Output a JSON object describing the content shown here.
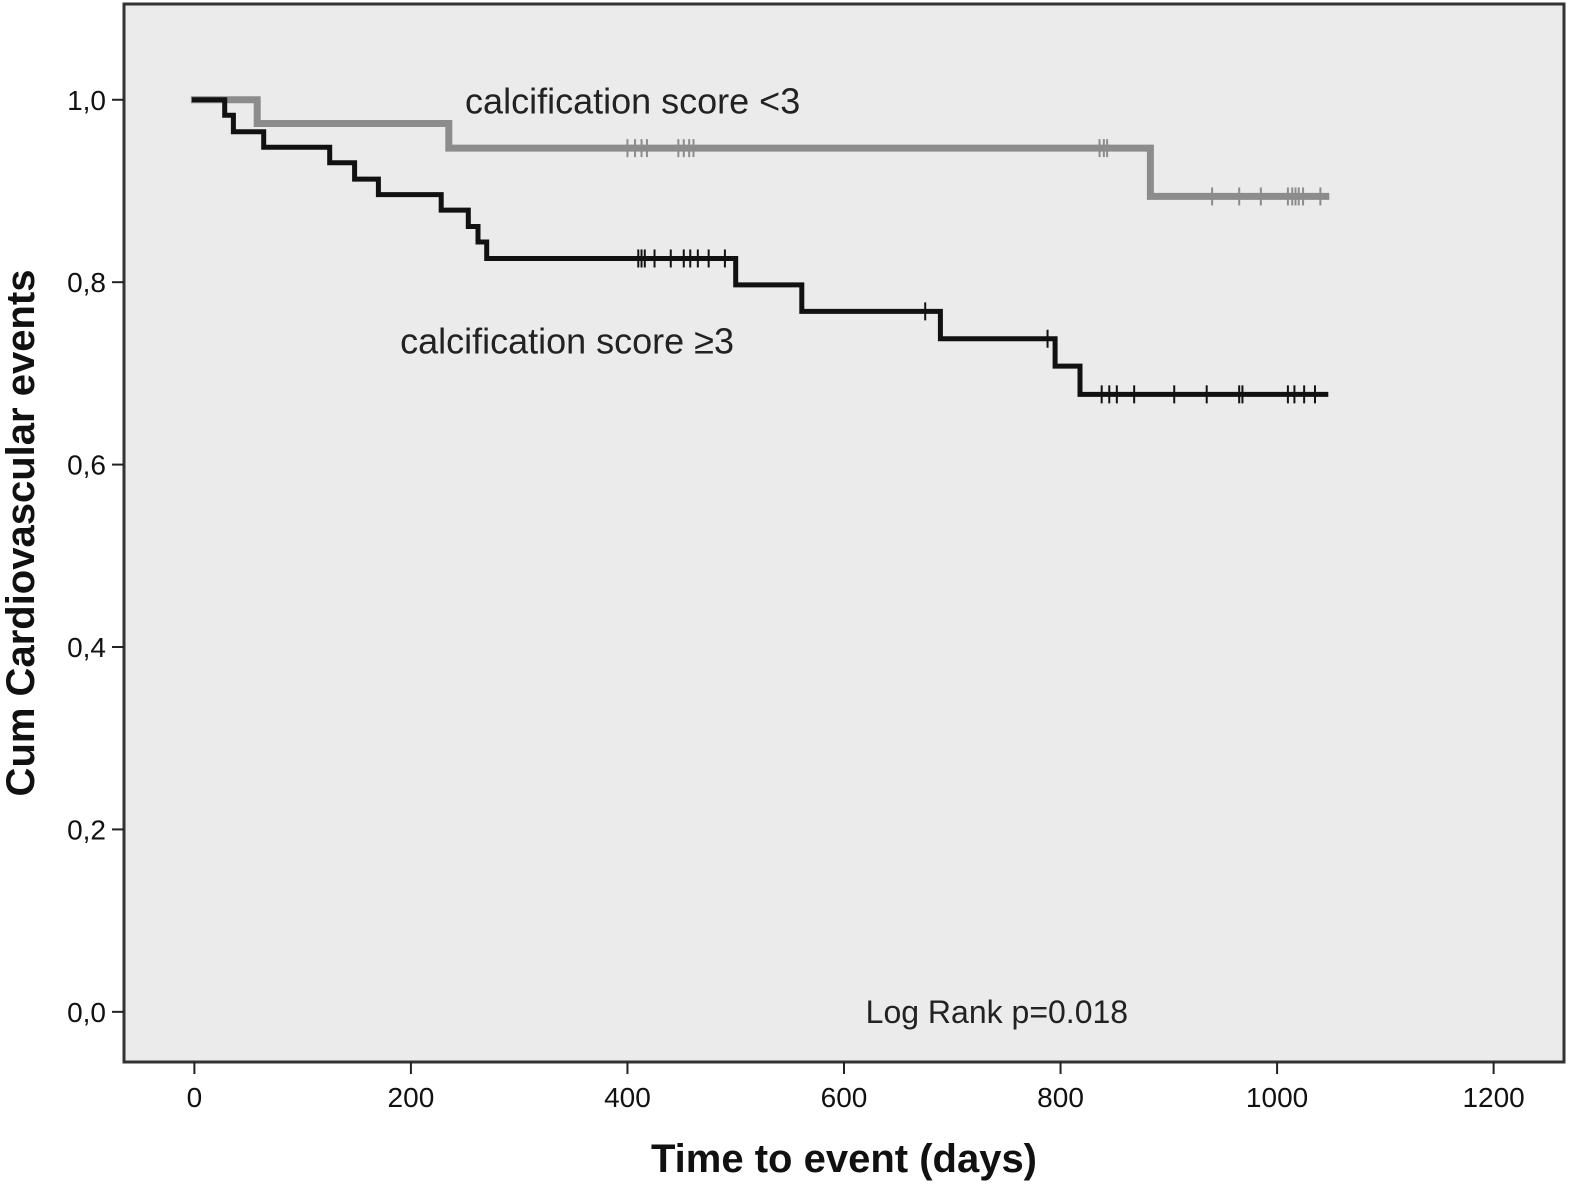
{
  "chart_data": {
    "type": "line",
    "subtype": "kaplan-meier step",
    "xlabel": "Time to event (days)",
    "ylabel": "Cum Cardiovascular events",
    "xlim": [
      -65,
      1265
    ],
    "ylim": [
      -0.055,
      1.105
    ],
    "x_ticks": [
      0,
      200,
      400,
      600,
      800,
      1000,
      1200
    ],
    "x_tick_labels": [
      "0",
      "200",
      "400",
      "600",
      "800",
      "1000",
      "1200"
    ],
    "y_ticks": [
      0.0,
      0.2,
      0.4,
      0.6,
      0.8,
      1.0
    ],
    "y_tick_labels": [
      "0,0",
      "0,2",
      "0,4",
      "0,6",
      "0,8",
      "1,0"
    ],
    "grid": false,
    "legend": "none",
    "plot_background": "#ebebeb",
    "annotations": [
      {
        "text": "calcification score <3",
        "x": 250,
        "y": 0.985
      },
      {
        "text": "calcification score ≥3",
        "x": 190,
        "y": 0.722
      },
      {
        "text": "Log Rank p=0.018",
        "x": 620,
        "y": -0.012
      }
    ],
    "series": [
      {
        "color": "#8c8c8c",
        "points": [
          [
            0,
            1.0
          ],
          [
            58,
            1.0
          ],
          [
            58,
            0.974
          ],
          [
            235,
            0.974
          ],
          [
            235,
            0.947
          ],
          [
            883,
            0.947
          ],
          [
            883,
            0.894
          ],
          [
            1045,
            0.894
          ]
        ],
        "censored": [
          [
            400,
            0.947
          ],
          [
            407,
            0.947
          ],
          [
            413,
            0.947
          ],
          [
            418,
            0.947
          ],
          [
            447,
            0.947
          ],
          [
            452,
            0.947
          ],
          [
            457,
            0.947
          ],
          [
            461,
            0.947
          ],
          [
            836,
            0.947
          ],
          [
            840,
            0.947
          ],
          [
            843,
            0.947
          ],
          [
            940,
            0.894
          ],
          [
            965,
            0.894
          ],
          [
            985,
            0.894
          ],
          [
            1010,
            0.894
          ],
          [
            1014,
            0.894
          ],
          [
            1017,
            0.894
          ],
          [
            1020,
            0.894
          ],
          [
            1024,
            0.894
          ],
          [
            1040,
            0.894
          ]
        ]
      },
      {
        "color": "#111111",
        "points": [
          [
            0,
            1.0
          ],
          [
            28,
            1.0
          ],
          [
            28,
            0.983
          ],
          [
            36,
            0.983
          ],
          [
            36,
            0.965
          ],
          [
            64,
            0.965
          ],
          [
            64,
            0.948
          ],
          [
            125,
            0.948
          ],
          [
            125,
            0.931
          ],
          [
            148,
            0.931
          ],
          [
            148,
            0.913
          ],
          [
            170,
            0.913
          ],
          [
            170,
            0.896
          ],
          [
            228,
            0.896
          ],
          [
            228,
            0.879
          ],
          [
            253,
            0.879
          ],
          [
            253,
            0.861
          ],
          [
            262,
            0.861
          ],
          [
            262,
            0.844
          ],
          [
            270,
            0.844
          ],
          [
            270,
            0.826
          ],
          [
            500,
            0.826
          ],
          [
            500,
            0.797
          ],
          [
            561,
            0.797
          ],
          [
            561,
            0.768
          ],
          [
            689,
            0.768
          ],
          [
            689,
            0.738
          ],
          [
            795,
            0.738
          ],
          [
            795,
            0.708
          ],
          [
            818,
            0.708
          ],
          [
            818,
            0.677
          ],
          [
            1045,
            0.677
          ]
        ],
        "censored": [
          [
            410,
            0.826
          ],
          [
            413,
            0.826
          ],
          [
            416,
            0.826
          ],
          [
            425,
            0.826
          ],
          [
            440,
            0.826
          ],
          [
            452,
            0.826
          ],
          [
            458,
            0.826
          ],
          [
            465,
            0.826
          ],
          [
            475,
            0.826
          ],
          [
            490,
            0.826
          ],
          [
            675,
            0.768
          ],
          [
            788,
            0.738
          ],
          [
            838,
            0.677
          ],
          [
            845,
            0.677
          ],
          [
            852,
            0.677
          ],
          [
            868,
            0.677
          ],
          [
            905,
            0.677
          ],
          [
            935,
            0.677
          ],
          [
            965,
            0.677
          ],
          [
            968,
            0.677
          ],
          [
            1010,
            0.677
          ],
          [
            1016,
            0.677
          ],
          [
            1025,
            0.677
          ],
          [
            1035,
            0.677
          ]
        ]
      }
    ]
  }
}
